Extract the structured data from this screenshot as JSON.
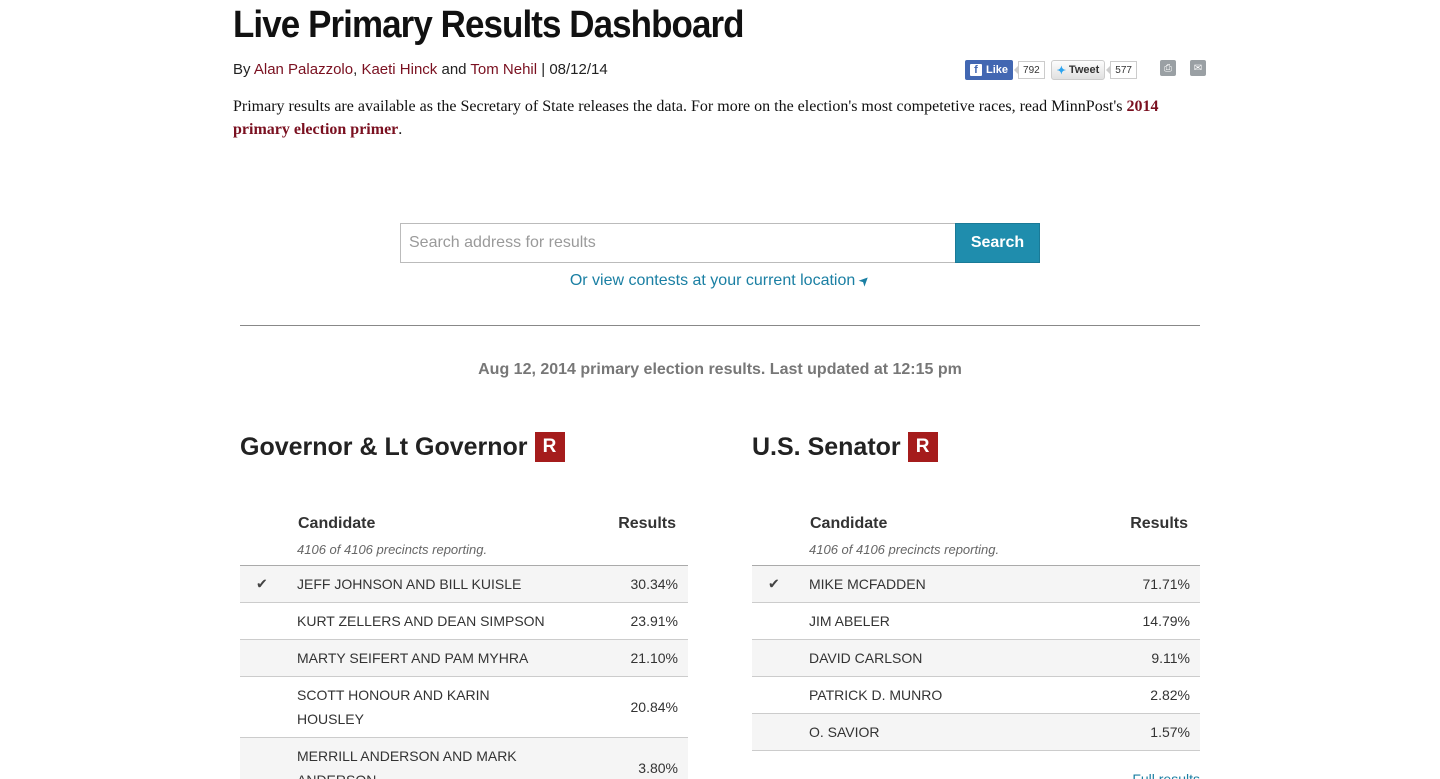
{
  "header": {
    "title": "Live Primary Results Dashboard",
    "byline_prefix": "By ",
    "authors": [
      "Alan Palazzolo",
      "Kaeti Hinck",
      "Tom Nehil"
    ],
    "byline_sep1": ", ",
    "byline_and": " and ",
    "byline_date": " | 08/12/14"
  },
  "social": {
    "like_label": "Like",
    "like_count": "792",
    "tweet_label": "Tweet",
    "tweet_count": "577"
  },
  "intro": {
    "text": "Primary results are available as the Secretary of State releases the data. For more on the election's most competetive races, read MinnPost's ",
    "link": "2014 primary election primer",
    "suffix": "."
  },
  "search": {
    "placeholder": "Search address for results",
    "button": "Search",
    "location_link": "Or view contests at your current location"
  },
  "status": {
    "updated": "Aug 12, 2014 primary election results. Last updated at 12:15 pm"
  },
  "contests": [
    {
      "title": "Governor & Lt Governor",
      "party": "R",
      "col_candidate": "Candidate",
      "col_results": "Results",
      "precincts": "4106 of 4106 precincts reporting.",
      "candidates": [
        {
          "name": "Jeff Johnson and Bill Kuisle",
          "pct": "30.34%",
          "winner": true
        },
        {
          "name": "Kurt Zellers and Dean Simpson",
          "pct": "23.91%",
          "winner": false
        },
        {
          "name": "Marty Seifert and Pam Myhra",
          "pct": "21.10%",
          "winner": false
        },
        {
          "name": "Scott Honour and Karin Housley",
          "pct": "20.84%",
          "winner": false
        },
        {
          "name": "Merrill Anderson and Mark Anderson",
          "pct": "3.80%",
          "winner": false
        }
      ]
    },
    {
      "title": "U.S. Senator",
      "party": "R",
      "col_candidate": "Candidate",
      "col_results": "Results",
      "precincts": "4106 of 4106 precincts reporting.",
      "candidates": [
        {
          "name": "Mike McFadden",
          "pct": "71.71%",
          "winner": true
        },
        {
          "name": "Jim Abeler",
          "pct": "14.79%",
          "winner": false
        },
        {
          "name": "David Carlson",
          "pct": "9.11%",
          "winner": false
        },
        {
          "name": "Patrick D. Munro",
          "pct": "2.82%",
          "winner": false
        },
        {
          "name": "O. Savior",
          "pct": "1.57%",
          "winner": false
        }
      ],
      "full_results": "Full results"
    }
  ]
}
